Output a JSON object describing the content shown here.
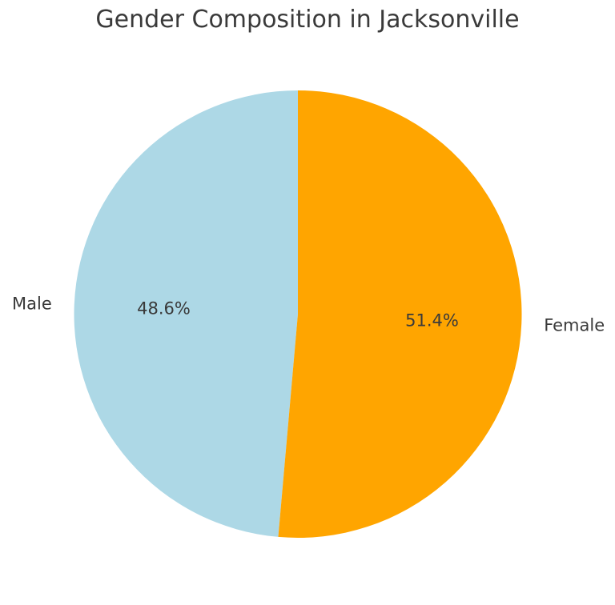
{
  "chart_data": {
    "type": "pie",
    "title": "Gender Composition in Jacksonville",
    "labels": [
      "Male",
      "Female"
    ],
    "values": [
      48.6,
      51.4
    ],
    "pct_labels": [
      "48.6%",
      "51.4%"
    ],
    "colors": [
      "#ADD8E6",
      "#FFA500"
    ],
    "startangle": 90,
    "counterclock": true,
    "labeldistance": 1.1,
    "pctdistance": 0.6,
    "legend": "none",
    "background_color": "#FFFFFF",
    "text_color": "#3A3A3A"
  }
}
